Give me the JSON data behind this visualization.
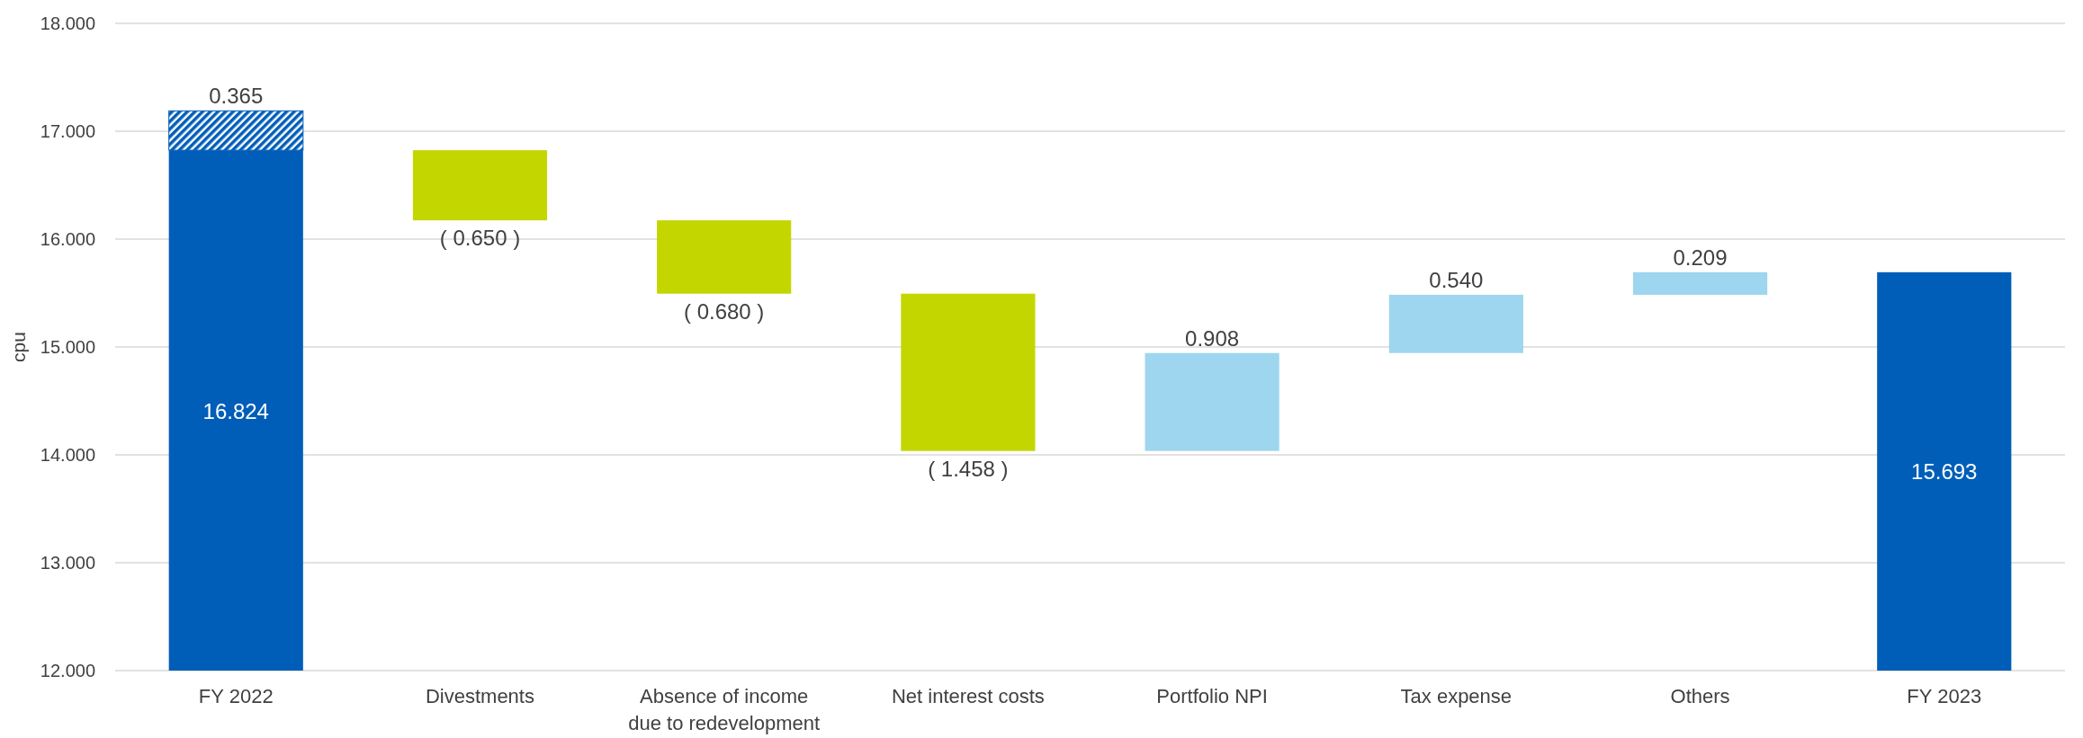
{
  "chart_data": {
    "type": "bar",
    "ylabel": "cpu",
    "categories": [
      "FY 2022",
      "Divestments",
      "Absence of income due to redevelopment",
      "Net interest costs",
      "Portfolio NPI",
      "Tax expense",
      "Others",
      "FY 2023"
    ],
    "series": [
      {
        "values": [
          4.824,
          -0.65,
          -0.68,
          -1.458,
          0.908,
          0.54,
          0.209,
          3.693
        ],
        "base": [
          12,
          16.824,
          16.174,
          15.494,
          14.036,
          14.944,
          15.484,
          12
        ],
        "colors": [
          "#005eb8",
          "#c4d600",
          "#c4d600",
          "#c4d600",
          "#9dd6ee",
          "#9dd6ee",
          "#9dd6ee",
          "#005eb8"
        ],
        "value_labels": [
          "16.824",
          "( 0.650 )",
          "( 0.680 )",
          "( 1.458 )",
          "0.908",
          "0.540",
          "0.209",
          "15.693"
        ]
      },
      {
        "values": [
          0.365,
          null,
          null,
          null,
          null,
          null,
          null,
          null
        ],
        "base": [
          16.824,
          null,
          null,
          null,
          null,
          null,
          null,
          null
        ],
        "color": "#005eb8",
        "value_labels": [
          "0.365",
          null,
          null,
          null,
          null,
          null,
          null,
          null
        ]
      }
    ],
    "ylim": [
      12,
      18
    ],
    "yticks": [
      {
        "value": 12,
        "label": "12.000"
      },
      {
        "value": 13,
        "label": "13.000"
      },
      {
        "value": 14,
        "label": "14.000"
      },
      {
        "value": 15,
        "label": "15.000"
      },
      {
        "value": 16,
        "label": "16.000"
      },
      {
        "value": 17,
        "label": "17.000"
      },
      {
        "value": 18,
        "label": "18.000"
      }
    ],
    "grid": "y"
  }
}
